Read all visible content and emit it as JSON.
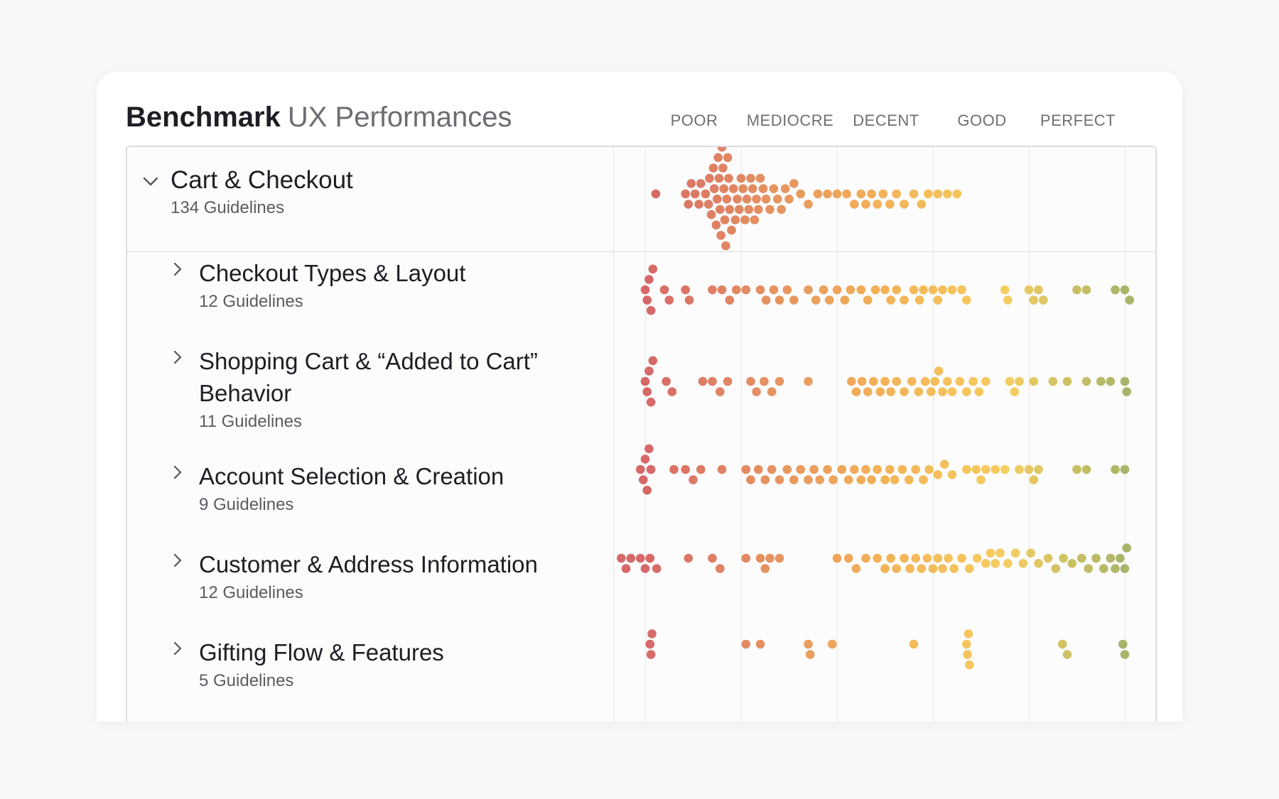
{
  "title": {
    "bold": "Benchmark",
    "regular": "UX Performances"
  },
  "levels": [
    "POOR",
    "MEDIOCRE",
    "DECENT",
    "GOOD",
    "PERFECT"
  ],
  "colors": {
    "poor": "#cf4d4d",
    "mediocre": "#e07e45",
    "decent": "#f1a53a",
    "good": "#f4c544",
    "perfect": "#9aa84d"
  },
  "rows": [
    {
      "name": "Cart & Checkout",
      "sub": "134 Guidelines",
      "expanded": true,
      "scores": [
        0.11,
        0.42,
        0.45,
        0.48,
        0.52,
        0.56,
        0.58,
        0.63,
        0.66,
        0.67,
        0.69,
        0.71,
        0.72,
        0.74,
        0.75,
        0.76,
        0.77,
        0.78,
        0.79,
        0.8,
        0.81,
        0.82,
        0.83,
        0.84,
        0.85,
        0.86,
        0.87,
        0.88,
        0.9,
        0.92,
        0.94,
        0.96,
        0.98,
        1.0,
        1.02,
        1.04,
        1.06,
        1.08,
        1.1,
        1.12,
        1.14,
        1.16,
        1.18,
        1.2,
        1.23,
        1.26,
        1.3,
        1.34,
        1.38,
        1.42,
        1.46,
        1.5,
        1.55,
        1.62,
        1.7,
        1.8,
        1.9,
        2.0,
        2.1,
        2.18,
        2.25,
        2.3,
        2.36,
        2.42,
        2.48,
        2.55,
        2.62,
        2.7,
        2.8,
        2.88,
        2.95,
        3.05,
        3.15,
        3.25
      ]
    },
    {
      "name": "Checkout Types & Layout",
      "sub": "12 Guidelines",
      "expanded": false,
      "scores": [
        0.0,
        0.02,
        0.04,
        0.06,
        0.08,
        0.2,
        0.25,
        0.42,
        0.46,
        0.7,
        0.8,
        0.88,
        0.95,
        1.05,
        1.2,
        1.26,
        1.34,
        1.4,
        1.48,
        1.55,
        1.7,
        1.78,
        1.86,
        1.92,
        2.0,
        2.08,
        2.14,
        2.25,
        2.32,
        2.4,
        2.5,
        2.56,
        2.62,
        2.7,
        2.8,
        2.86,
        2.9,
        3.0,
        3.05,
        3.1,
        3.2,
        3.3,
        3.35,
        3.75,
        3.78,
        4.0,
        4.05,
        4.1,
        4.15,
        4.5,
        4.6,
        4.9,
        5.0,
        5.05
      ]
    },
    {
      "name": "Shopping Cart & “Added to Cart” Behavior",
      "sub": "11 Guidelines",
      "expanded": false,
      "scores": [
        0.0,
        0.02,
        0.04,
        0.06,
        0.08,
        0.22,
        0.28,
        0.6,
        0.7,
        0.78,
        0.86,
        1.1,
        1.16,
        1.24,
        1.32,
        1.4,
        1.7,
        2.15,
        2.2,
        2.26,
        2.32,
        2.38,
        2.45,
        2.5,
        2.56,
        2.62,
        2.7,
        2.78,
        2.85,
        2.92,
        2.98,
        3.02,
        3.06,
        3.1,
        3.15,
        3.2,
        3.28,
        3.35,
        3.42,
        3.48,
        3.55,
        3.8,
        3.85,
        3.9,
        4.05,
        4.25,
        4.4,
        4.6,
        4.75,
        4.85,
        5.0,
        5.02
      ]
    },
    {
      "name": "Account Selection & Creation",
      "sub": "9 Guidelines",
      "expanded": false,
      "scores": [
        -0.05,
        -0.02,
        0.0,
        0.02,
        0.04,
        0.06,
        0.3,
        0.42,
        0.5,
        0.58,
        0.8,
        1.05,
        1.1,
        1.18,
        1.25,
        1.32,
        1.4,
        1.48,
        1.55,
        1.62,
        1.7,
        1.76,
        1.82,
        1.9,
        1.96,
        2.05,
        2.12,
        2.18,
        2.25,
        2.3,
        2.36,
        2.42,
        2.5,
        2.55,
        2.6,
        2.68,
        2.75,
        2.82,
        2.9,
        2.96,
        3.05,
        3.12,
        3.2,
        3.35,
        3.45,
        3.5,
        3.55,
        3.65,
        3.75,
        3.9,
        4.0,
        4.05,
        4.1,
        4.5,
        4.6,
        4.9,
        5.0
      ]
    },
    {
      "name": "Customer & Address Information",
      "sub": "12 Guidelines",
      "expanded": false,
      "scores": [
        -0.25,
        -0.2,
        -0.15,
        -0.05,
        0.0,
        0.05,
        0.12,
        0.45,
        0.7,
        0.78,
        1.05,
        1.2,
        1.25,
        1.3,
        1.4,
        2.0,
        2.12,
        2.2,
        2.3,
        2.42,
        2.5,
        2.56,
        2.62,
        2.7,
        2.76,
        2.82,
        2.88,
        2.94,
        3.0,
        3.05,
        3.1,
        3.16,
        3.22,
        3.3,
        3.38,
        3.46,
        3.55,
        3.6,
        3.65,
        3.7,
        3.78,
        3.86,
        3.94,
        4.02,
        4.1,
        4.2,
        4.28,
        4.36,
        4.45,
        4.55,
        4.62,
        4.7,
        4.78,
        4.85,
        4.9,
        4.95,
        5.0,
        5.02
      ]
    },
    {
      "name": "Gifting Flow & Features",
      "sub": "5 Guidelines",
      "expanded": false,
      "scores": [
        0.05,
        0.06,
        0.07,
        1.05,
        1.2,
        1.7,
        1.72,
        1.95,
        2.8,
        3.35,
        3.36,
        3.37,
        3.38,
        4.35,
        4.4,
        4.98,
        5.0
      ]
    }
  ]
}
